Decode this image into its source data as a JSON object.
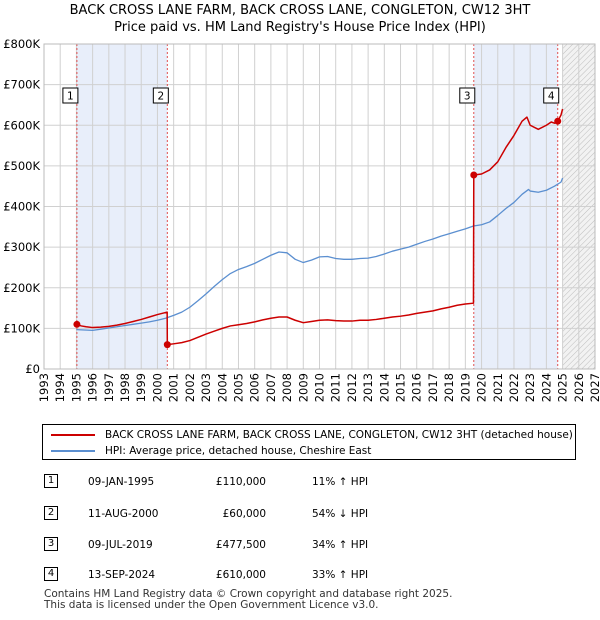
{
  "title": {
    "line1": "BACK CROSS LANE FARM, BACK CROSS LANE, CONGLETON, CW12 3HT",
    "line2": "Price paid vs. HM Land Registry's House Price Index (HPI)"
  },
  "chart_data": {
    "type": "line",
    "title": "BACK CROSS LANE FARM, BACK CROSS LANE, CONGLETON, CW12 3HT",
    "subtitle": "Price paid vs. HM Land Registry's House Price Index (HPI)",
    "xlim": [
      1993,
      2027
    ],
    "ylim": [
      0,
      800000
    ],
    "x_ticks": [
      1993,
      1994,
      1995,
      1996,
      1997,
      1998,
      1999,
      2000,
      2001,
      2002,
      2003,
      2004,
      2005,
      2006,
      2007,
      2008,
      2009,
      2010,
      2011,
      2012,
      2013,
      2014,
      2015,
      2016,
      2017,
      2018,
      2019,
      2020,
      2021,
      2022,
      2023,
      2024,
      2025,
      2026,
      2027
    ],
    "y_ticks": [
      0,
      100000,
      200000,
      300000,
      400000,
      500000,
      600000,
      700000,
      800000
    ],
    "y_tick_labels": [
      "£0",
      "£100K",
      "£200K",
      "£300K",
      "£400K",
      "£500K",
      "£600K",
      "£700K",
      "£800K"
    ],
    "grid": true,
    "shaded_periods": [
      [
        1995.03,
        2000.61
      ],
      [
        2019.52,
        2024.7
      ]
    ],
    "hatched_from": 2025.0,
    "series": [
      {
        "name": "BACK CROSS LANE FARM, BACK CROSS LANE, CONGLETON, CW12 3HT (detached house)",
        "color": "#cc0000",
        "points": [
          [
            1995.03,
            110000
          ],
          [
            1995.3,
            106000
          ],
          [
            1995.6,
            104000
          ],
          [
            1996.0,
            102000
          ],
          [
            1996.5,
            103000
          ],
          [
            1997.0,
            105000
          ],
          [
            1997.5,
            108000
          ],
          [
            1998.0,
            112000
          ],
          [
            1998.5,
            117000
          ],
          [
            1999.0,
            122000
          ],
          [
            1999.5,
            128000
          ],
          [
            2000.0,
            134000
          ],
          [
            2000.4,
            138000
          ],
          [
            2000.6,
            140000
          ],
          [
            2000.61,
            60000
          ],
          [
            2001.0,
            62000
          ],
          [
            2001.5,
            65000
          ],
          [
            2002.0,
            70000
          ],
          [
            2002.5,
            78000
          ],
          [
            2003.0,
            86000
          ],
          [
            2003.5,
            93000
          ],
          [
            2004.0,
            100000
          ],
          [
            2004.5,
            106000
          ],
          [
            2005.0,
            109000
          ],
          [
            2005.5,
            112000
          ],
          [
            2006.0,
            116000
          ],
          [
            2006.5,
            121000
          ],
          [
            2007.0,
            125000
          ],
          [
            2007.5,
            128000
          ],
          [
            2008.0,
            128000
          ],
          [
            2008.5,
            120000
          ],
          [
            2009.0,
            114000
          ],
          [
            2009.5,
            117000
          ],
          [
            2010.0,
            120000
          ],
          [
            2010.5,
            121000
          ],
          [
            2011.0,
            119000
          ],
          [
            2011.5,
            118000
          ],
          [
            2012.0,
            118000
          ],
          [
            2012.5,
            120000
          ],
          [
            2013.0,
            120000
          ],
          [
            2013.5,
            122000
          ],
          [
            2014.0,
            125000
          ],
          [
            2014.5,
            128000
          ],
          [
            2015.0,
            130000
          ],
          [
            2015.5,
            133000
          ],
          [
            2016.0,
            137000
          ],
          [
            2016.5,
            140000
          ],
          [
            2017.0,
            143000
          ],
          [
            2017.5,
            148000
          ],
          [
            2018.0,
            152000
          ],
          [
            2018.5,
            157000
          ],
          [
            2019.0,
            160000
          ],
          [
            2019.5,
            162000
          ],
          [
            2019.52,
            477500
          ],
          [
            2020.0,
            480000
          ],
          [
            2020.5,
            490000
          ],
          [
            2021.0,
            510000
          ],
          [
            2021.5,
            545000
          ],
          [
            2022.0,
            575000
          ],
          [
            2022.5,
            610000
          ],
          [
            2022.8,
            620000
          ],
          [
            2023.0,
            600000
          ],
          [
            2023.5,
            590000
          ],
          [
            2024.0,
            600000
          ],
          [
            2024.3,
            608000
          ],
          [
            2024.5,
            605000
          ],
          [
            2024.7,
            610000
          ],
          [
            2024.9,
            625000
          ],
          [
            2025.0,
            640000
          ]
        ]
      },
      {
        "name": "HPI: Average price, detached house, Cheshire East",
        "color": "#5b8fd0",
        "points": [
          [
            1995.0,
            97000
          ],
          [
            1995.5,
            96000
          ],
          [
            1996.0,
            95000
          ],
          [
            1996.5,
            98000
          ],
          [
            1997.0,
            101000
          ],
          [
            1997.5,
            104000
          ],
          [
            1998.0,
            107000
          ],
          [
            1998.5,
            110000
          ],
          [
            1999.0,
            113000
          ],
          [
            1999.5,
            116000
          ],
          [
            2000.0,
            120000
          ],
          [
            2000.5,
            125000
          ],
          [
            2001.0,
            132000
          ],
          [
            2001.5,
            140000
          ],
          [
            2002.0,
            152000
          ],
          [
            2002.5,
            168000
          ],
          [
            2003.0,
            185000
          ],
          [
            2003.5,
            203000
          ],
          [
            2004.0,
            220000
          ],
          [
            2004.5,
            235000
          ],
          [
            2005.0,
            245000
          ],
          [
            2005.5,
            252000
          ],
          [
            2006.0,
            260000
          ],
          [
            2006.5,
            270000
          ],
          [
            2007.0,
            280000
          ],
          [
            2007.5,
            288000
          ],
          [
            2008.0,
            286000
          ],
          [
            2008.5,
            270000
          ],
          [
            2009.0,
            262000
          ],
          [
            2009.5,
            268000
          ],
          [
            2010.0,
            276000
          ],
          [
            2010.5,
            277000
          ],
          [
            2011.0,
            272000
          ],
          [
            2011.5,
            270000
          ],
          [
            2012.0,
            270000
          ],
          [
            2012.5,
            272000
          ],
          [
            2013.0,
            273000
          ],
          [
            2013.5,
            277000
          ],
          [
            2014.0,
            283000
          ],
          [
            2014.5,
            290000
          ],
          [
            2015.0,
            295000
          ],
          [
            2015.5,
            300000
          ],
          [
            2016.0,
            307000
          ],
          [
            2016.5,
            314000
          ],
          [
            2017.0,
            320000
          ],
          [
            2017.5,
            327000
          ],
          [
            2018.0,
            333000
          ],
          [
            2018.5,
            339000
          ],
          [
            2019.0,
            345000
          ],
          [
            2019.5,
            352000
          ],
          [
            2020.0,
            355000
          ],
          [
            2020.5,
            362000
          ],
          [
            2021.0,
            378000
          ],
          [
            2021.5,
            395000
          ],
          [
            2022.0,
            410000
          ],
          [
            2022.5,
            430000
          ],
          [
            2022.9,
            442000
          ],
          [
            2023.0,
            438000
          ],
          [
            2023.5,
            435000
          ],
          [
            2024.0,
            440000
          ],
          [
            2024.5,
            450000
          ],
          [
            2024.9,
            460000
          ],
          [
            2025.0,
            470000
          ]
        ]
      }
    ],
    "sales": [
      {
        "label": "1",
        "x": 1995.03,
        "y": 110000,
        "date": "09-JAN-1995",
        "price": "£110,000",
        "hpi": "11% ↑ HPI"
      },
      {
        "label": "2",
        "x": 2000.61,
        "y": 60000,
        "date": "11-AUG-2000",
        "price": "£60,000",
        "hpi": "54% ↓ HPI"
      },
      {
        "label": "3",
        "x": 2019.52,
        "y": 477500,
        "date": "09-JUL-2019",
        "price": "£477,500",
        "hpi": "34% ↑ HPI"
      },
      {
        "label": "4",
        "x": 2024.7,
        "y": 610000,
        "date": "13-SEP-2024",
        "price": "£610,000",
        "hpi": "33% ↑ HPI"
      }
    ]
  },
  "legend": {
    "property": "BACK CROSS LANE FARM, BACK CROSS LANE, CONGLETON, CW12 3HT (detached house)",
    "hpi": "HPI: Average price, detached house, Cheshire East",
    "property_color": "#cc0000",
    "hpi_color": "#5b8fd0"
  },
  "footer": {
    "line1": "Contains HM Land Registry data © Crown copyright and database right 2025.",
    "line2": "This data is licensed under the Open Government Licence v3.0."
  }
}
